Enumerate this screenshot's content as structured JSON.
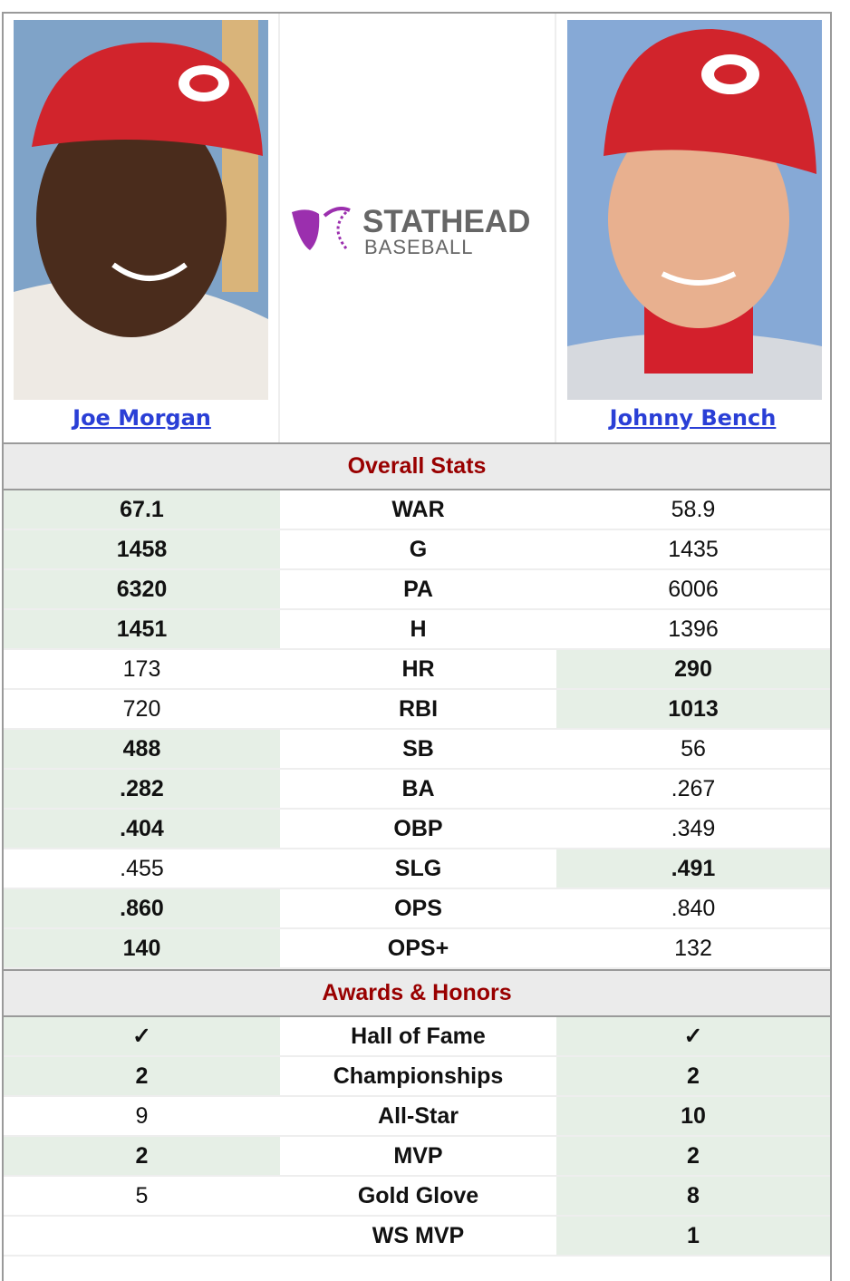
{
  "header": {
    "left_player": "Joe Morgan",
    "right_player": "Johnny Bench",
    "logo_title": "STATHEAD",
    "logo_subtitle": "BASEBALL"
  },
  "sections": [
    {
      "title": "Overall Stats",
      "rows": [
        {
          "stat": "WAR",
          "left": "67.1",
          "right": "58.9",
          "leader": "left"
        },
        {
          "stat": "G",
          "left": "1458",
          "right": "1435",
          "leader": "left"
        },
        {
          "stat": "PA",
          "left": "6320",
          "right": "6006",
          "leader": "left"
        },
        {
          "stat": "H",
          "left": "1451",
          "right": "1396",
          "leader": "left"
        },
        {
          "stat": "HR",
          "left": "173",
          "right": "290",
          "leader": "right"
        },
        {
          "stat": "RBI",
          "left": "720",
          "right": "1013",
          "leader": "right"
        },
        {
          "stat": "SB",
          "left": "488",
          "right": "56",
          "leader": "left"
        },
        {
          "stat": "BA",
          "left": ".282",
          "right": ".267",
          "leader": "left"
        },
        {
          "stat": "OBP",
          "left": ".404",
          "right": ".349",
          "leader": "left"
        },
        {
          "stat": "SLG",
          "left": ".455",
          "right": ".491",
          "leader": "right"
        },
        {
          "stat": "OPS",
          "left": ".860",
          "right": ".840",
          "leader": "left"
        },
        {
          "stat": "OPS+",
          "left": "140",
          "right": "132",
          "leader": "left"
        }
      ]
    },
    {
      "title": "Awards & Honors",
      "rows": [
        {
          "stat": "Hall of Fame",
          "left": "✓",
          "right": "✓",
          "leader": "both"
        },
        {
          "stat": "Championships",
          "left": "2",
          "right": "2",
          "leader": "both"
        },
        {
          "stat": "All-Star",
          "left": "9",
          "right": "10",
          "leader": "right"
        },
        {
          "stat": "MVP",
          "left": "2",
          "right": "2",
          "leader": "both"
        },
        {
          "stat": "Gold Glove",
          "left": "5",
          "right": "8",
          "leader": "right"
        },
        {
          "stat": "WS MVP",
          "left": null,
          "right": "1",
          "leader": "right"
        }
      ]
    }
  ]
}
